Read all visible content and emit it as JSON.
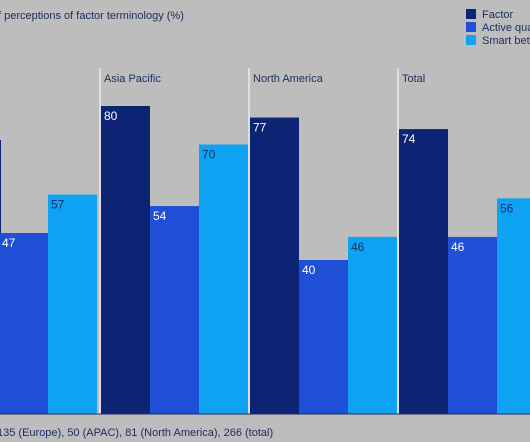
{
  "title": "f perceptions of factor terminology (%)",
  "footnote": "135 (Europe), 50 (APAC), 81 (North America), 266 (total)",
  "colors": {
    "background": "#bdbdbd",
    "text": "#1c2c5e",
    "divider": "#ffffff",
    "baseline": "#1c2c5e"
  },
  "chart_data": {
    "type": "bar",
    "categories": [
      "Europe",
      "Asia Pacific",
      "North America",
      "Total"
    ],
    "category_labels_shown": [
      "",
      "Asia Pacific",
      "North America",
      "Total"
    ],
    "series": [
      {
        "name": "Factor",
        "values": [
          null,
          80,
          77,
          74
        ],
        "color": "#0d2374"
      },
      {
        "name": "Active qua",
        "values": [
          47,
          54,
          40,
          46
        ],
        "color": "#1e4fd6"
      },
      {
        "name": "Smart bet",
        "values": [
          57,
          70,
          46,
          56
        ],
        "color": "#0da3f2"
      }
    ],
    "ylim": [
      0,
      100
    ],
    "grid": false,
    "legend_position": "top-right"
  }
}
